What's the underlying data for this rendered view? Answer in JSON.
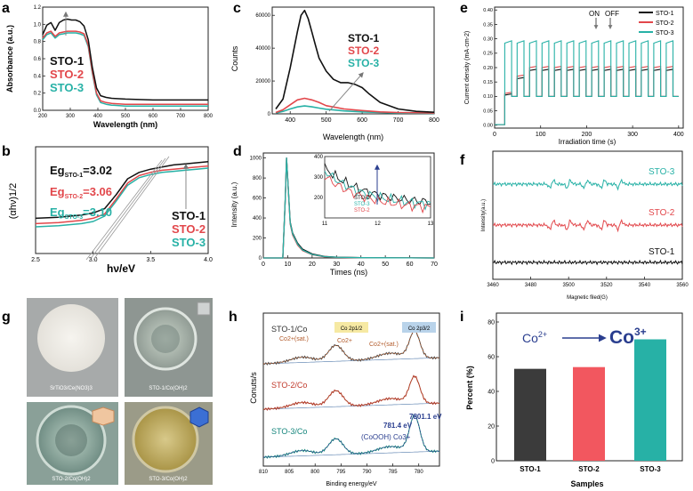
{
  "colors": {
    "sto1": "#111111",
    "sto2": "#e2474b",
    "sto3": "#27b1a6",
    "axis": "#222222",
    "blue": "#2a3e8f"
  },
  "chart_data": [
    {
      "id": "a",
      "type": "line",
      "panel_label": "a",
      "xlabel": "Wavelength (nm)",
      "ylabel": "Absorbance (a.u.)",
      "xlim": [
        200,
        800
      ],
      "ylim": [
        0,
        1.2
      ],
      "xticks": [
        200,
        300,
        400,
        500,
        600,
        700,
        800
      ],
      "yticks": [
        0.0,
        0.2,
        0.4,
        0.6,
        0.8,
        1.0,
        1.2
      ],
      "ytick_labels": [
        "0.0",
        "0.2",
        "0.4",
        "0.6",
        "0.8",
        "1.0",
        "1.2"
      ],
      "legend": [
        "STO-1",
        "STO-2",
        "STO-3"
      ],
      "series": [
        {
          "name": "STO-1",
          "x": [
            200,
            215,
            230,
            245,
            260,
            275,
            290,
            305,
            320,
            335,
            350,
            365,
            380,
            395,
            410,
            430,
            450,
            500,
            600,
            700,
            800
          ],
          "y": [
            0.88,
            0.99,
            1.02,
            0.93,
            1.02,
            1.05,
            1.06,
            1.05,
            1.05,
            1.03,
            0.98,
            0.82,
            0.5,
            0.26,
            0.17,
            0.15,
            0.14,
            0.13,
            0.12,
            0.12,
            0.12
          ]
        },
        {
          "name": "STO-2",
          "x": [
            200,
            215,
            230,
            245,
            260,
            275,
            290,
            305,
            320,
            335,
            350,
            365,
            380,
            395,
            410,
            430,
            450,
            500,
            600,
            700,
            800
          ],
          "y": [
            0.84,
            0.9,
            0.92,
            0.86,
            0.9,
            0.91,
            0.92,
            0.92,
            0.92,
            0.91,
            0.89,
            0.76,
            0.45,
            0.2,
            0.11,
            0.09,
            0.08,
            0.07,
            0.07,
            0.07,
            0.07
          ]
        },
        {
          "name": "STO-3",
          "x": [
            200,
            215,
            230,
            245,
            260,
            275,
            290,
            305,
            320,
            335,
            350,
            365,
            380,
            395,
            410,
            430,
            450,
            500,
            600,
            700,
            800
          ],
          "y": [
            0.82,
            0.88,
            0.9,
            0.84,
            0.88,
            0.89,
            0.9,
            0.9,
            0.9,
            0.89,
            0.87,
            0.74,
            0.43,
            0.18,
            0.09,
            0.07,
            0.06,
            0.05,
            0.05,
            0.05,
            0.05
          ]
        }
      ]
    },
    {
      "id": "b",
      "type": "line",
      "panel_label": "b",
      "xlabel": "hν/eV",
      "ylabel": "(αhν)1/2",
      "xlim": [
        2.5,
        4.0
      ],
      "xticks": [
        2.5,
        3.0,
        3.5,
        4.0
      ],
      "xtick_labels": [
        "2.5",
        "3.0",
        "3.5",
        "4.0"
      ],
      "ylim": [
        0,
        1
      ],
      "annotations": [
        {
          "text": "Eg",
          "sub": "STO-1",
          "val": "=3.02"
        },
        {
          "text": "Eg",
          "sub": "STO-2",
          "val": "=3.06"
        },
        {
          "text": "Eg",
          "sub": "STO-3",
          "val": "=3.10"
        }
      ],
      "legend": [
        "STO-1",
        "STO-2",
        "STO-3"
      ],
      "series": [
        {
          "name": "STO-1",
          "x": [
            2.5,
            2.7,
            2.9,
            3.0,
            3.1,
            3.2,
            3.3,
            3.4,
            3.5,
            3.6,
            3.7,
            3.8,
            3.9,
            4.0
          ],
          "y": [
            0.33,
            0.34,
            0.36,
            0.38,
            0.42,
            0.55,
            0.7,
            0.76,
            0.79,
            0.81,
            0.83,
            0.84,
            0.85,
            0.86
          ]
        },
        {
          "name": "STO-2",
          "x": [
            2.5,
            2.7,
            2.9,
            3.0,
            3.1,
            3.2,
            3.3,
            3.4,
            3.5,
            3.6,
            3.7,
            3.8,
            3.9,
            4.0
          ],
          "y": [
            0.28,
            0.29,
            0.31,
            0.33,
            0.37,
            0.51,
            0.66,
            0.73,
            0.76,
            0.78,
            0.79,
            0.8,
            0.81,
            0.82
          ]
        },
        {
          "name": "STO-3",
          "x": [
            2.5,
            2.7,
            2.9,
            3.0,
            3.1,
            3.2,
            3.3,
            3.4,
            3.5,
            3.6,
            3.7,
            3.8,
            3.9,
            4.0
          ],
          "y": [
            0.25,
            0.26,
            0.28,
            0.3,
            0.35,
            0.49,
            0.64,
            0.71,
            0.74,
            0.76,
            0.77,
            0.78,
            0.79,
            0.8
          ]
        }
      ]
    },
    {
      "id": "c",
      "type": "line",
      "panel_label": "c",
      "xlabel": "Wavelength (nm)",
      "ylabel": "Counts",
      "xlim": [
        350,
        800
      ],
      "ylim": [
        0,
        65000
      ],
      "xticks": [
        400,
        500,
        600,
        700,
        800
      ],
      "yticks": [
        0,
        20000,
        40000,
        60000
      ],
      "ytick_labels": [
        "0",
        "20000",
        "40000",
        "60000"
      ],
      "legend": [
        "STO-1",
        "STO-2",
        "STO-3"
      ],
      "series": [
        {
          "name": "STO-1",
          "x": [
            360,
            380,
            400,
            420,
            430,
            440,
            450,
            460,
            470,
            480,
            500,
            520,
            540,
            560,
            580,
            600,
            620,
            650,
            700,
            750,
            800
          ],
          "y": [
            3000,
            9000,
            28000,
            50000,
            60000,
            63000,
            58000,
            50000,
            42000,
            34000,
            26000,
            21000,
            19000,
            19000,
            18000,
            16000,
            12000,
            7000,
            3000,
            1500,
            1000
          ]
        },
        {
          "name": "STO-2",
          "x": [
            360,
            380,
            400,
            420,
            440,
            460,
            480,
            500,
            550,
            600,
            650,
            700,
            800
          ],
          "y": [
            800,
            2500,
            5500,
            8500,
            9500,
            8500,
            7000,
            5000,
            3000,
            2000,
            1200,
            800,
            500
          ]
        },
        {
          "name": "STO-3",
          "x": [
            360,
            380,
            400,
            420,
            440,
            460,
            480,
            500,
            550,
            600,
            650,
            700,
            800
          ],
          "y": [
            500,
            1500,
            3000,
            4200,
            4800,
            4300,
            3500,
            2800,
            1800,
            1200,
            800,
            500,
            300
          ]
        }
      ]
    },
    {
      "id": "d",
      "type": "line",
      "panel_label": "d",
      "xlabel": "Times (ns)",
      "ylabel": "Intensity (a.u.)",
      "xlim": [
        0,
        70
      ],
      "ylim": [
        0,
        1050
      ],
      "xticks": [
        0,
        10,
        20,
        30,
        40,
        50,
        60,
        70
      ],
      "yticks": [
        0,
        200,
        400,
        600,
        800,
        1000
      ],
      "ytick_labels": [
        "0",
        "200",
        "400",
        "600",
        "800",
        "1000"
      ],
      "inset": {
        "xlim": [
          11,
          13
        ],
        "ylim": [
          100,
          400
        ],
        "xticks": [
          11,
          12,
          13
        ],
        "yticks": [
          200,
          300,
          400
        ],
        "legend": [
          "STO-1",
          "STO-3",
          "STO-2"
        ]
      },
      "series": [
        {
          "name": "STO-1",
          "x": [
            0,
            8,
            9,
            9.5,
            10,
            11,
            12,
            14,
            16,
            20,
            25,
            30,
            40,
            50,
            60,
            70
          ],
          "y": [
            0,
            0,
            600,
            1000,
            800,
            360,
            250,
            150,
            90,
            40,
            15,
            8,
            4,
            2,
            1,
            0
          ]
        },
        {
          "name": "STO-2",
          "x": [
            0,
            8,
            9,
            9.5,
            10,
            11,
            12,
            14,
            16,
            20,
            25,
            30,
            40,
            50,
            60,
            70
          ],
          "y": [
            0,
            0,
            590,
            995,
            790,
            340,
            230,
            130,
            75,
            32,
            12,
            6,
            3,
            1,
            1,
            0
          ]
        },
        {
          "name": "STO-3",
          "x": [
            0,
            8,
            9,
            9.5,
            10,
            11,
            12,
            14,
            16,
            20,
            25,
            30,
            40,
            50,
            60,
            70
          ],
          "y": [
            0,
            0,
            595,
            998,
            795,
            350,
            240,
            140,
            80,
            35,
            13,
            7,
            3,
            2,
            1,
            0
          ]
        }
      ]
    },
    {
      "id": "e",
      "type": "line",
      "panel_label": "e",
      "xlabel": "Irradiation time (s)",
      "ylabel": "Current density (mA·cm-2)",
      "xlim": [
        0,
        410
      ],
      "ylim": [
        -0.01,
        0.41
      ],
      "xticks": [
        0,
        100,
        200,
        300,
        400
      ],
      "yticks": [
        0.0,
        0.05,
        0.1,
        0.15,
        0.2,
        0.25,
        0.3,
        0.35,
        0.4
      ],
      "ytick_labels": [
        "0.00",
        "0.05",
        "0.10",
        "0.15",
        "0.20",
        "0.25",
        "0.30",
        "0.35",
        "0.40"
      ],
      "annotations": [
        {
          "text": "ON"
        },
        {
          "text": "OFF"
        }
      ],
      "legend": [
        "STO-1",
        "STO-2",
        "STO-3"
      ],
      "levels": [
        {
          "name": "STO-1",
          "on": 0.19
        },
        {
          "name": "STO-2",
          "on": 0.2
        },
        {
          "name": "STO-3",
          "on": 0.285
        }
      ]
    },
    {
      "id": "f",
      "type": "line",
      "panel_label": "f",
      "xlabel": "Magnetic filed(G)",
      "ylabel": "Intensity(a.u.)",
      "xlim": [
        3460,
        3560
      ],
      "xticks": [
        3460,
        3480,
        3500,
        3520,
        3540,
        3560
      ],
      "labels": [
        "STO-3",
        "STO-2",
        "STO-1"
      ],
      "peaks": [
        3491,
        3500,
        3509,
        3518,
        3527
      ]
    },
    {
      "id": "h",
      "type": "line",
      "panel_label": "h",
      "xlabel": "Binding energy/eV",
      "ylabel": "Conuts/s",
      "xlim": [
        810,
        776
      ],
      "xticks": [
        810,
        805,
        800,
        795,
        790,
        785,
        780
      ],
      "annotations": {
        "co2p12": "Co 2p1/2",
        "co2p32": "Co 2p3/2",
        "co2sat_a": "Co2+(sat.)",
        "co2": "Co2+",
        "co2sat_b": "Co2+(sat.)",
        "peak1": "781.4 eV",
        "peak2": "7801.1 eV",
        "cooh": "(CoOOH) Co3+"
      },
      "labels": [
        "STO-1/Co",
        "STO-2/Co",
        "STO-3/Co"
      ]
    },
    {
      "id": "i",
      "type": "bar",
      "panel_label": "i",
      "xlabel": "Samples",
      "ylabel": "Percent (%)",
      "categories": [
        "STO-1",
        "STO-2",
        "STO-3"
      ],
      "values": [
        53,
        54,
        70
      ],
      "ylim": [
        0,
        80
      ],
      "yticks": [
        0,
        20,
        40,
        60,
        80
      ],
      "ytick_labels": [
        "0",
        "20",
        "40",
        "60",
        "80"
      ],
      "annotation": {
        "from": "Co",
        "from_sup": "2+",
        "to": "Co",
        "to_sup": "3+"
      }
    }
  ],
  "panel_g": {
    "label": "g",
    "photos": [
      {
        "caption": "SrTiO3/Ce(NO3)3"
      },
      {
        "caption": "STO-1/Co(OH)2"
      },
      {
        "caption": "STO-2/Co(OH)2"
      },
      {
        "caption": "STO-3/Co(OH)2"
      }
    ]
  }
}
